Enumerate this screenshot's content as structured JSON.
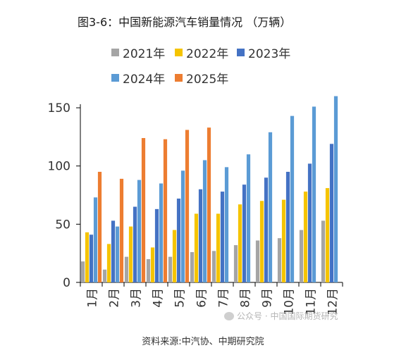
{
  "title": "图3-6：中国新能源汽车销量情况 （万辆）",
  "source": "资料来源:中汽协、中期研究院",
  "watermark": "公众号 · 中国国际期货研究",
  "chart_data": {
    "type": "bar",
    "categories": [
      "1月",
      "2月",
      "3月",
      "4月",
      "5月",
      "6月",
      "7月",
      "8月",
      "9月",
      "10月",
      "11月",
      "12月"
    ],
    "ylim": [
      0,
      170
    ],
    "yticks": [
      0,
      50,
      100,
      150
    ],
    "grid": false,
    "legend_position": "top",
    "series": [
      {
        "name": "2021年",
        "color": "#a5a5a5",
        "values": [
          18,
          11,
          22,
          20,
          22,
          26,
          27,
          32,
          36,
          38,
          45,
          53
        ]
      },
      {
        "name": "2022年",
        "color": "#f5c400",
        "values": [
          43,
          33,
          48,
          30,
          45,
          59,
          59,
          67,
          70,
          71,
          78,
          81
        ]
      },
      {
        "name": "2023年",
        "color": "#4472c4",
        "values": [
          41,
          53,
          65,
          63,
          72,
          80,
          78,
          84,
          90,
          95,
          102,
          119
        ]
      },
      {
        "name": "2024年",
        "color": "#5b9bd5",
        "values": [
          73,
          48,
          88,
          85,
          96,
          105,
          99,
          110,
          129,
          143,
          151,
          160
        ]
      },
      {
        "name": "2025年",
        "color": "#ed7d31",
        "values": [
          95,
          89,
          124,
          123,
          131,
          133,
          null,
          null,
          null,
          null,
          null,
          null
        ]
      }
    ]
  }
}
